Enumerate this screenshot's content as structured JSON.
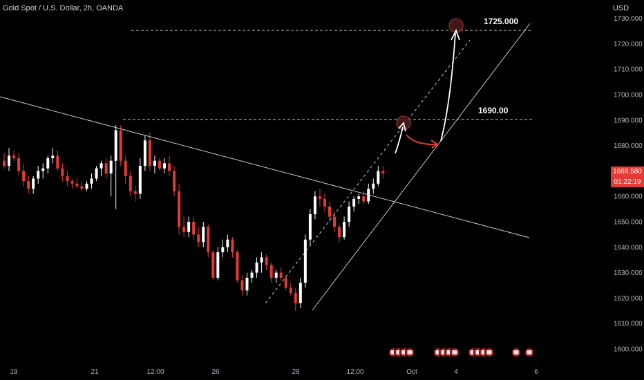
{
  "header": {
    "title": "Gold Spot / U.S. Dollar, 2h, OANDA",
    "currency": "USD"
  },
  "price_tag": {
    "price": "1669.580",
    "countdown": "01:22:19"
  },
  "levels": [
    {
      "price": 1725.0,
      "label": "1725.000"
    },
    {
      "price": 1690.0,
      "label": "1690.00"
    }
  ],
  "colors": {
    "up": "#ffffff",
    "down": "#e53935",
    "line": "#d1d4dc",
    "background": "#000000"
  },
  "events_icon": "flag-icon",
  "chart_data": {
    "type": "candlestick",
    "symbol": "Gold Spot / U.S. Dollar",
    "timeframe": "2h",
    "source": "OANDA",
    "y_ticks": [
      1600,
      1610,
      1620,
      1630,
      1640,
      1650,
      1660,
      1670,
      1680,
      1690,
      1700,
      1710,
      1720,
      1730
    ],
    "y_tick_labels": [
      "1600.000",
      "1610.000",
      "1620.000",
      "1630.000",
      "1640.000",
      "1650.000",
      "1660.000",
      "1670.000",
      "1680.000",
      "1690.000",
      "1700.000",
      "1710.000",
      "1720.000",
      "1730.000"
    ],
    "x_tick_labels": [
      "19",
      "21",
      "12:00",
      "26",
      "28",
      "12:00",
      "Oct",
      "4",
      "6"
    ],
    "ohlc": [
      [
        1674,
        1677,
        1671,
        1672
      ],
      [
        1672,
        1679,
        1670,
        1676
      ],
      [
        1676,
        1678,
        1674,
        1675
      ],
      [
        1675,
        1677,
        1668,
        1670
      ],
      [
        1670,
        1673,
        1664,
        1666
      ],
      [
        1666,
        1668,
        1661,
        1663
      ],
      [
        1663,
        1668,
        1661,
        1667
      ],
      [
        1667,
        1672,
        1665,
        1670
      ],
      [
        1670,
        1673,
        1667,
        1671
      ],
      [
        1671,
        1676,
        1669,
        1675
      ],
      [
        1675,
        1679,
        1673,
        1676
      ],
      [
        1676,
        1678,
        1670,
        1671
      ],
      [
        1671,
        1673,
        1666,
        1668
      ],
      [
        1668,
        1670,
        1664,
        1666
      ],
      [
        1666,
        1667,
        1663,
        1665
      ],
      [
        1665,
        1667,
        1663,
        1664
      ],
      [
        1664,
        1666,
        1662,
        1663
      ],
      [
        1663,
        1666,
        1662,
        1665
      ],
      [
        1665,
        1669,
        1663,
        1667
      ],
      [
        1667,
        1672,
        1666,
        1671
      ],
      [
        1671,
        1674,
        1668,
        1673
      ],
      [
        1673,
        1675,
        1667,
        1669
      ],
      [
        1669,
        1676,
        1660,
        1674
      ],
      [
        1674,
        1688,
        1655,
        1686
      ],
      [
        1686,
        1688,
        1672,
        1674
      ],
      [
        1674,
        1676,
        1665,
        1668
      ],
      [
        1668,
        1670,
        1660,
        1662
      ],
      [
        1662,
        1664,
        1658,
        1661
      ],
      [
        1661,
        1675,
        1659,
        1672
      ],
      [
        1672,
        1684,
        1670,
        1682
      ],
      [
        1682,
        1685,
        1670,
        1672
      ],
      [
        1672,
        1676,
        1669,
        1674
      ],
      [
        1674,
        1675,
        1670,
        1671
      ],
      [
        1671,
        1675,
        1669,
        1673
      ],
      [
        1673,
        1676,
        1668,
        1670
      ],
      [
        1670,
        1672,
        1660,
        1662
      ],
      [
        1662,
        1665,
        1645,
        1648
      ],
      [
        1648,
        1652,
        1644,
        1646
      ],
      [
        1646,
        1652,
        1644,
        1650
      ],
      [
        1650,
        1652,
        1643,
        1645
      ],
      [
        1645,
        1648,
        1640,
        1642
      ],
      [
        1642,
        1650,
        1640,
        1648
      ],
      [
        1648,
        1649,
        1636,
        1638
      ],
      [
        1638,
        1639,
        1627,
        1628
      ],
      [
        1628,
        1640,
        1627,
        1638
      ],
      [
        1638,
        1643,
        1636,
        1640
      ],
      [
        1640,
        1645,
        1638,
        1643
      ],
      [
        1643,
        1644,
        1636,
        1638
      ],
      [
        1638,
        1639,
        1626,
        1627
      ],
      [
        1627,
        1629,
        1621,
        1623
      ],
      [
        1623,
        1630,
        1621,
        1628
      ],
      [
        1628,
        1631,
        1626,
        1630
      ],
      [
        1630,
        1636,
        1628,
        1634
      ],
      [
        1634,
        1638,
        1630,
        1636
      ],
      [
        1636,
        1637,
        1631,
        1633
      ],
      [
        1633,
        1634,
        1626,
        1628
      ],
      [
        1628,
        1631,
        1626,
        1630
      ],
      [
        1630,
        1632,
        1627,
        1628
      ],
      [
        1628,
        1629,
        1623,
        1624
      ],
      [
        1624,
        1626,
        1621,
        1622
      ],
      [
        1622,
        1624,
        1615,
        1618
      ],
      [
        1618,
        1628,
        1616,
        1626
      ],
      [
        1626,
        1645,
        1624,
        1643
      ],
      [
        1643,
        1655,
        1641,
        1653
      ],
      [
        1653,
        1662,
        1651,
        1660
      ],
      [
        1660,
        1663,
        1656,
        1659
      ],
      [
        1659,
        1661,
        1654,
        1656
      ],
      [
        1656,
        1658,
        1650,
        1652
      ],
      [
        1652,
        1654,
        1646,
        1648
      ],
      [
        1648,
        1649,
        1642,
        1644
      ],
      [
        1644,
        1652,
        1643,
        1650
      ],
      [
        1650,
        1658,
        1648,
        1656
      ],
      [
        1656,
        1660,
        1654,
        1659
      ],
      [
        1659,
        1661,
        1657,
        1660
      ],
      [
        1660,
        1662,
        1657,
        1658
      ],
      [
        1658,
        1665,
        1657,
        1663
      ],
      [
        1663,
        1667,
        1661,
        1665
      ],
      [
        1665,
        1672,
        1664,
        1670
      ],
      [
        1670,
        1672,
        1667,
        1669
      ]
    ],
    "annotations": [
      {
        "type": "horizontal-dashed",
        "price": 1725.0,
        "label": "1725.000"
      },
      {
        "type": "horizontal-dashed",
        "price": 1690.0,
        "label": "1690.00"
      },
      {
        "type": "trendline",
        "name": "resistance"
      },
      {
        "type": "trendline",
        "name": "support"
      },
      {
        "type": "trendline-dashed",
        "name": "channel"
      },
      {
        "type": "arrow",
        "name": "projection"
      }
    ],
    "grid": false
  }
}
